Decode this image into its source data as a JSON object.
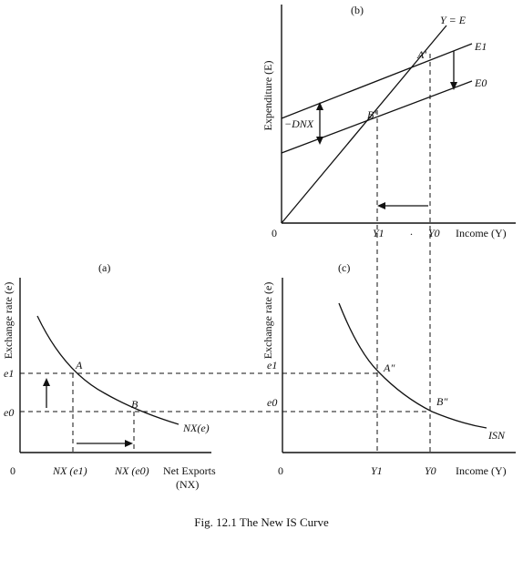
{
  "figure": {
    "caption": "Fig. 12.1 The New IS Curve"
  },
  "panel_b": {
    "label": "(b)",
    "y_axis": "Expenditure (E)",
    "x_axis": "Income (Y)",
    "origin": "0",
    "line_45": "Y = E",
    "curve_upper": "E1",
    "curve_lower": "E0",
    "point_a": "A'",
    "point_b": "B'",
    "shift": "−DNX",
    "tick_y1": "Y1",
    "tick_dot": ".",
    "tick_y0": "Y0"
  },
  "panel_a": {
    "label": "(a)",
    "y_axis": "Exchange rate (e)",
    "x_axis_1": "Net Exports",
    "x_axis_2": "(NX)",
    "origin": "0",
    "curve": "NX(e)",
    "point_a": "A",
    "point_b": "B",
    "tick_e1": "e1",
    "tick_e0": "e0",
    "tick_nx1": "NX (e1)",
    "tick_nx0": "NX (e0)"
  },
  "panel_c": {
    "label": "(c)",
    "y_axis": "Exchange rate (e)",
    "x_axis": "Income (Y)",
    "origin": "0",
    "curve": "ISN",
    "point_a": "A″",
    "point_b": "B″",
    "tick_e1": "e1",
    "tick_e0": "e0",
    "tick_y1": "Y1",
    "tick_y0": "Y0"
  }
}
